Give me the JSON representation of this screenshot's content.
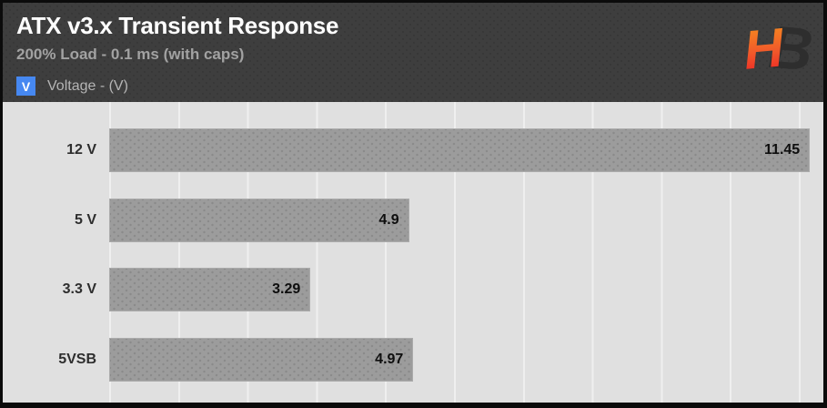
{
  "header": {
    "title": "ATX v3.x Transient Response",
    "subtitle": "200% Load - 0.1 ms (with caps)",
    "legend": {
      "symbol": "V",
      "label": "Voltage - (V)",
      "swatch_color": "#4688f1"
    },
    "logo_text": "HB"
  },
  "chart_data": {
    "type": "bar",
    "orientation": "horizontal",
    "title": "ATX v3.x Transient Response",
    "subtitle": "200% Load - 0.1 ms (with caps)",
    "series_label": "Voltage - (V)",
    "categories": [
      "12 V",
      "5 V",
      "3.3 V",
      "5VSB"
    ],
    "values": [
      11.45,
      4.9,
      3.29,
      4.97
    ],
    "value_labels": [
      "11.45",
      "4.9",
      "3.29",
      "4.97"
    ],
    "xlim": [
      0,
      11.67
    ],
    "grid": true,
    "legend_position": "top-left",
    "colors": {
      "bar": "#9c9c9c",
      "chart_bg": "#e0e0e0",
      "header_bg": "#3e3e3e",
      "accent_blue": "#4688f1",
      "value_text": "#0e0e0e",
      "category_text": "#2e2e2e"
    }
  }
}
